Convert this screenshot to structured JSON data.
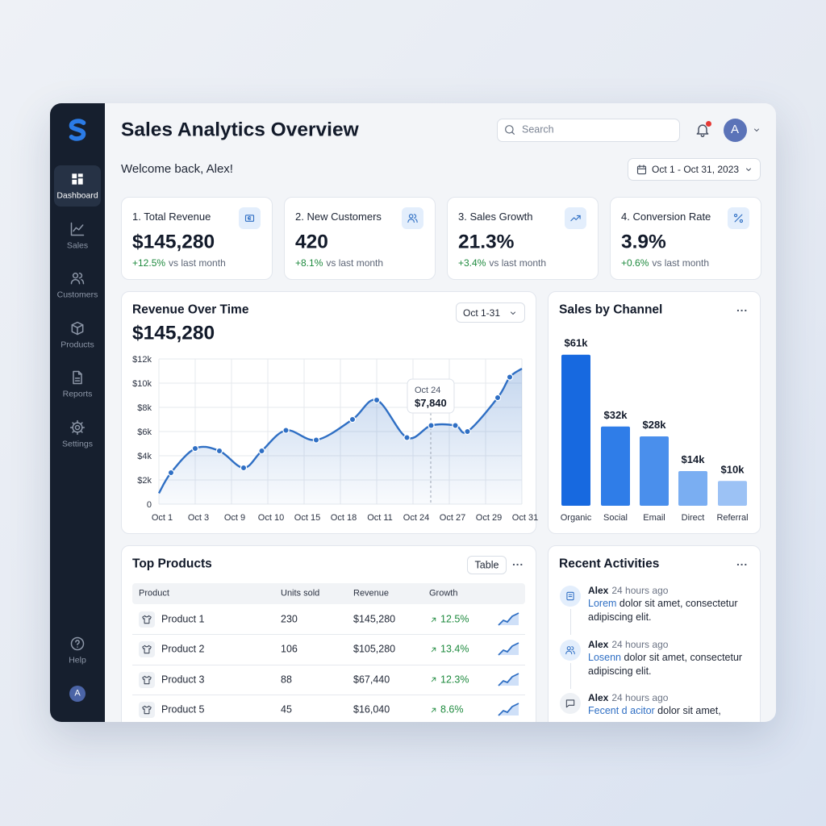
{
  "sidebar": {
    "nav": [
      "Dashboard",
      "Sales",
      "Customers",
      "Products",
      "Reports",
      "Settings"
    ],
    "help": "Help",
    "avatar": "A"
  },
  "header": {
    "title": "Sales Analytics Overview",
    "search_placeholder": "Search",
    "avatar": "A",
    "welcome": "Welcome back, Alex!",
    "date_range": "Oct 1 - Oct 31, 2023"
  },
  "kpis": [
    {
      "label": "1. Total Revenue",
      "value": "$145,280",
      "change": "+12.5%",
      "note": "vs last month"
    },
    {
      "label": "2. New Customers",
      "value": "420",
      "change": "+8.1%",
      "note": "vs last month"
    },
    {
      "label": "3. Sales Growth",
      "value": "21.3%",
      "change": "+3.4%",
      "note": "vs last month"
    },
    {
      "label": "4. Conversion Rate",
      "value": "3.9%",
      "change": "+0.6%",
      "note": "vs last month"
    }
  ],
  "revenue_chart": {
    "type": "line",
    "title": "Revenue Over Time",
    "total": "$145,280",
    "range_button": "Oct 1-31",
    "x": [
      0,
      1,
      3,
      5,
      7,
      8.5,
      10.5,
      13,
      16,
      18,
      20.5,
      22.5,
      24.5,
      25.5,
      28,
      29,
      30
    ],
    "values": [
      900,
      2600,
      4600,
      4400,
      3000,
      4400,
      6100,
      5300,
      7000,
      8600,
      5500,
      6500,
      6500,
      6000,
      8800,
      10500,
      11200
    ],
    "color": "#2f6fc4",
    "xlim": [
      0,
      30
    ],
    "xticks": [
      {
        "value": 0,
        "label": "Oct 1"
      },
      {
        "value": 3,
        "label": "Oct 3"
      },
      {
        "value": 6,
        "label": "Oct 9"
      },
      {
        "value": 9,
        "label": "Oct 10"
      },
      {
        "value": 12,
        "label": "Oct 15"
      },
      {
        "value": 15,
        "label": "Oct 18"
      },
      {
        "value": 18,
        "label": "Oct 11"
      },
      {
        "value": 21,
        "label": "Oct 24"
      },
      {
        "value": 24,
        "label": "Oct 27"
      },
      {
        "value": 27,
        "label": "Oct 29"
      },
      {
        "value": 30,
        "label": "Oct 31"
      }
    ],
    "ylim": [
      0,
      12000
    ],
    "yticks": [
      0,
      {
        "value": 2000,
        "label": "$2k"
      },
      {
        "value": 4000,
        "label": "$4k"
      },
      {
        "value": 6000,
        "label": "$6k"
      },
      {
        "value": 8000,
        "label": "$8k"
      },
      {
        "value": 10000,
        "label": "$10k"
      },
      {
        "value": 12000,
        "label": "$12k"
      }
    ],
    "grid": true,
    "tooltip": {
      "label": "Oct 24",
      "value": "$7,840"
    }
  },
  "channel_chart": {
    "type": "bar",
    "title": "Sales by Channel",
    "categories": [
      "Organic",
      "Social",
      "Email",
      "Direct",
      "Referral"
    ],
    "values": [
      61,
      32,
      28,
      14,
      10
    ],
    "value_labels": [
      "$61k",
      "$32k",
      "$28k",
      "$14k",
      "$10k"
    ],
    "colors": [
      "#1769e0",
      "#2f7de8",
      "#4a8fec",
      "#7aaef2",
      "#9cc2f5"
    ]
  },
  "top_products": {
    "title": "Top Products",
    "view_button": "Table",
    "columns": [
      "Product",
      "Units sold",
      "Revenue",
      "Growth"
    ],
    "rows": [
      [
        "Product 1",
        "230",
        "$145,280",
        "12.5%"
      ],
      [
        "Product 2",
        "106",
        "$105,280",
        "13.4%"
      ],
      [
        "Product 3",
        "88",
        "$67,440",
        "12.3%"
      ],
      [
        "Product 5",
        "45",
        "$16,040",
        "8.6%"
      ]
    ]
  },
  "activities": {
    "title": "Recent Activities",
    "items": [
      {
        "user": "Alex",
        "time": "24 hours ago",
        "link": "Lorem",
        "text": "dolor sit amet, consectetur adipiscing elit."
      },
      {
        "user": "Alex",
        "time": "24 hours ago",
        "link": "Losenn",
        "text": "dolor sit amet, consectetur adipiscing elit."
      },
      {
        "user": "Alex",
        "time": "24 hours ago",
        "link": "Fecent d acitor",
        "text": "dolor sit amet,"
      }
    ]
  }
}
